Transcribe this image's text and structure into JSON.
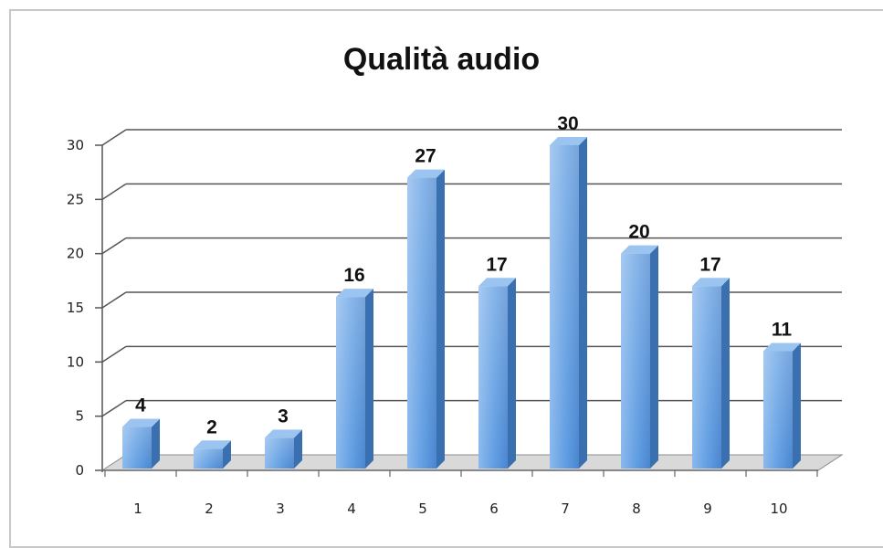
{
  "chart_data": {
    "type": "bar",
    "title": "Qualità audio",
    "xlabel": "",
    "ylabel": "",
    "categories": [
      "1",
      "2",
      "3",
      "4",
      "5",
      "6",
      "7",
      "8",
      "9",
      "10"
    ],
    "values": [
      4,
      2,
      3,
      16,
      27,
      17,
      30,
      20,
      17,
      11
    ],
    "ylim": [
      0,
      30
    ],
    "yticks": [
      0,
      5,
      10,
      15,
      20,
      25,
      30
    ],
    "grid": true,
    "legend": "none",
    "style": "3d-column",
    "colors": {
      "bar_front": "#5b9be0",
      "bar_side": "#3a6fb0",
      "bar_top": "#9cc4f0",
      "grid": "#555555",
      "floor": "#d9d9d9"
    }
  }
}
